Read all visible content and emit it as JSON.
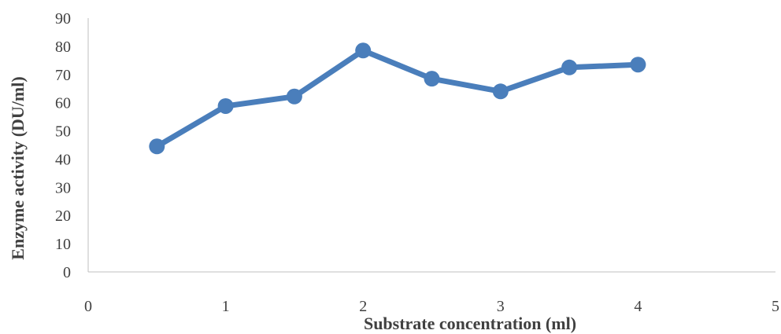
{
  "chart_data": {
    "type": "line",
    "title": "",
    "xlabel": "Substrate concentration (ml)",
    "ylabel": "Enzyme activity (DU/ml)",
    "xlim": [
      0,
      5
    ],
    "ylim": [
      0,
      90
    ],
    "xticks": [
      0,
      1,
      2,
      3,
      4,
      5
    ],
    "yticks": [
      0,
      10,
      20,
      30,
      40,
      50,
      60,
      70,
      80,
      90
    ],
    "grid": false,
    "legend": "none",
    "series": [
      {
        "color": "#4a7ebb",
        "x": [
          0.5,
          1.0,
          1.5,
          2.0,
          2.5,
          3.0,
          3.5,
          4.0
        ],
        "y": [
          44.5,
          58.8,
          62.2,
          78.5,
          68.5,
          64.0,
          72.5,
          73.5
        ]
      }
    ]
  }
}
